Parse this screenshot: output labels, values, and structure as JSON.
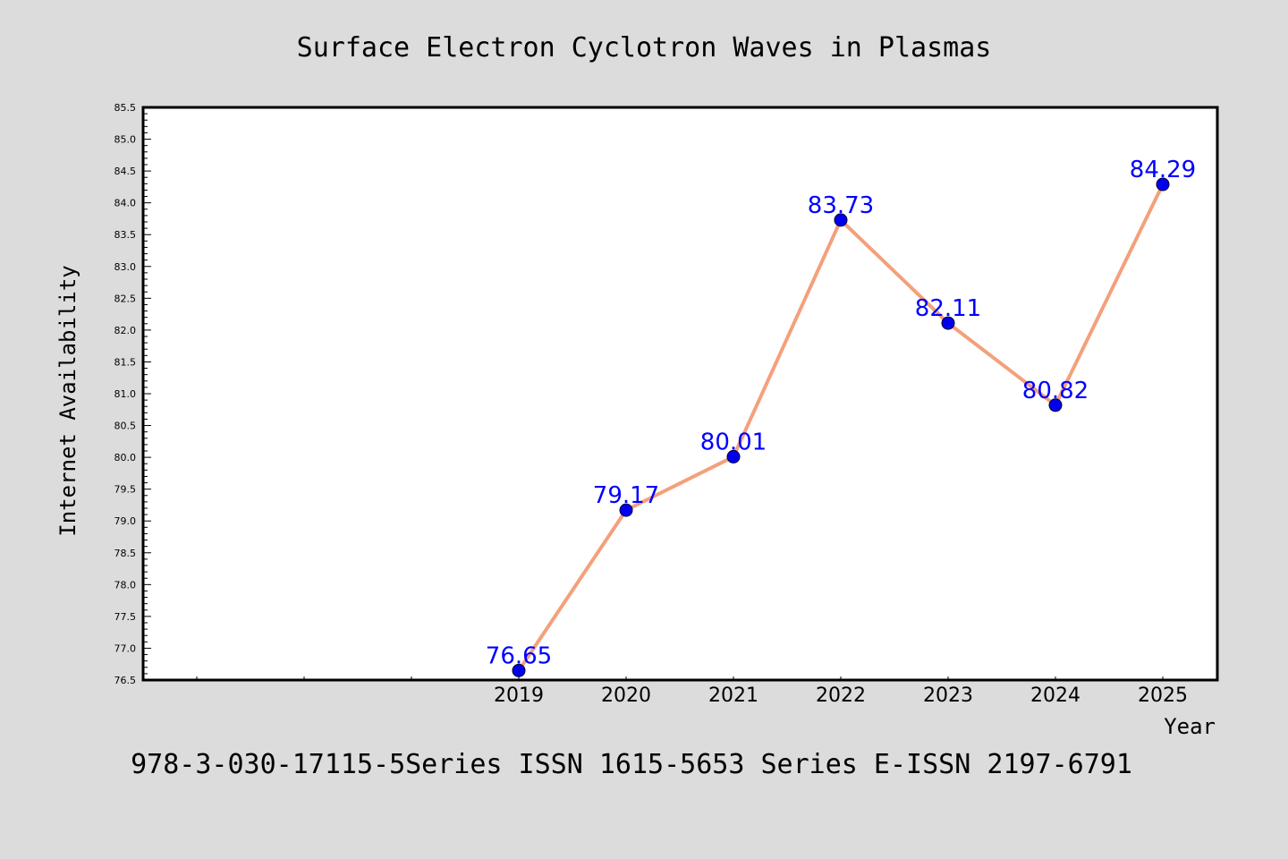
{
  "chart_data": {
    "type": "line",
    "title": "Surface Electron Cyclotron Waves in Plasmas",
    "xlabel": "Year",
    "ylabel": "Internet Availability",
    "ylim": [
      76.5,
      85.5
    ],
    "y_ticks": [
      "76.5",
      "77.0",
      "77.5",
      "78.0",
      "78.5",
      "79.0",
      "79.5",
      "80.0",
      "80.5",
      "81.0",
      "81.5",
      "82.0",
      "82.5",
      "83.0",
      "83.5",
      "84.0",
      "84.5",
      "85.0",
      "85.5"
    ],
    "categories": [
      "2019",
      "2020",
      "2021",
      "2022",
      "2023",
      "2024",
      "2025"
    ],
    "series": [
      {
        "values": [
          76.65,
          79.17,
          80.01,
          83.73,
          82.11,
          80.82,
          84.29
        ],
        "data_labels": [
          "76.65",
          "79.17",
          "80.01",
          "83.73",
          "82.11",
          "80.82",
          "84.29"
        ],
        "line_color": "#f4a07c",
        "marker_color": "#0000ee"
      }
    ],
    "grid": false,
    "legend": "none"
  },
  "footer": "978-3-030-17115-5Series ISSN 1615-5653 Series E-ISSN 2197-6791",
  "colors": {
    "background": "#dcdcdc",
    "plot_background": "#ffffff",
    "label_color": "#0000ff"
  }
}
